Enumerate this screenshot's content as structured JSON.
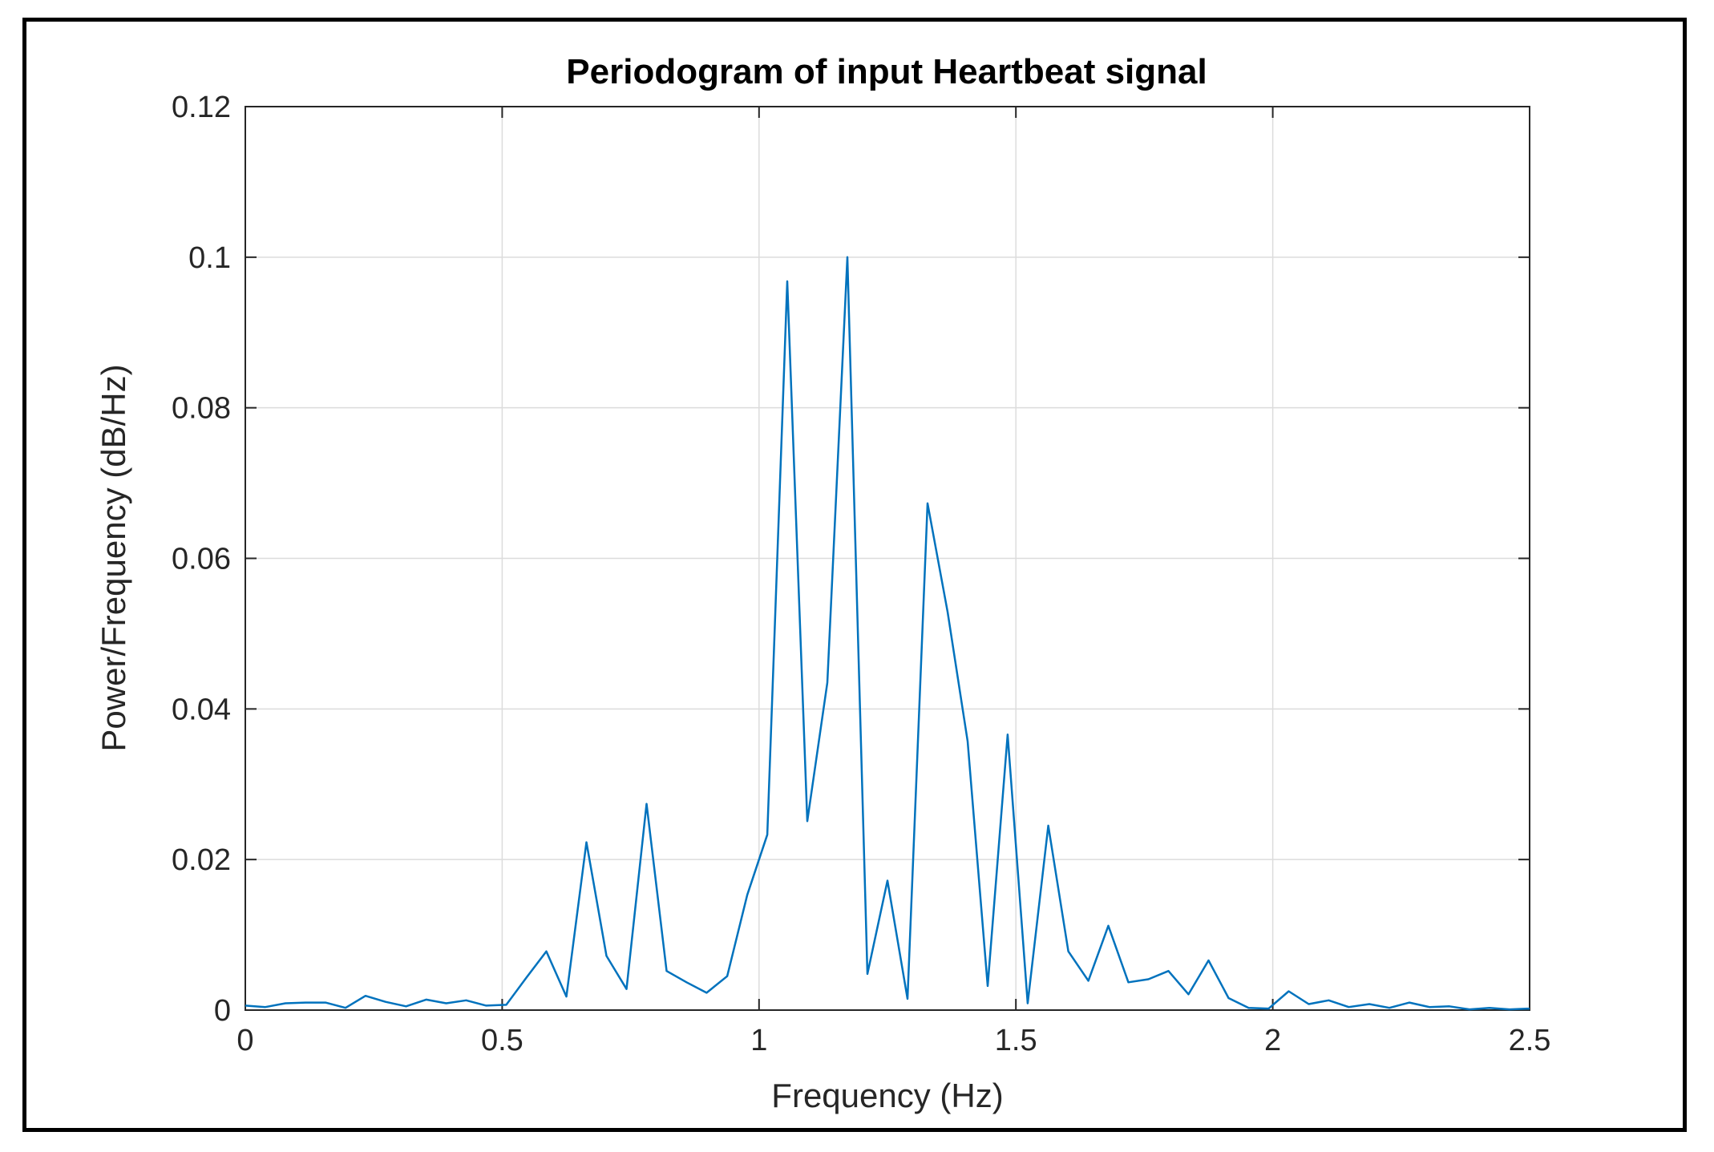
{
  "chart_data": {
    "type": "line",
    "title": "Periodogram of input Heartbeat signal",
    "xlabel": "Frequency (Hz)",
    "ylabel": "Power/Frequency (dB/Hz)",
    "xlim": [
      0,
      2.5
    ],
    "ylim": [
      0,
      0.12
    ],
    "grid": true,
    "legend": "none",
    "line_color": "#0072bd",
    "xticks": [
      0,
      0.5,
      1,
      1.5,
      2,
      2.5
    ],
    "xtick_labels": [
      "0",
      "0.5",
      "1",
      "1.5",
      "2",
      "2.5"
    ],
    "yticks": [
      0,
      0.02,
      0.04,
      0.06,
      0.08,
      0.1,
      0.12
    ],
    "ytick_labels": [
      "0",
      "0.02",
      "0.04",
      "0.06",
      "0.08",
      "0.1",
      "0.12"
    ],
    "series": [
      {
        "name": "Periodogram",
        "x": [
          0,
          0.039,
          0.078,
          0.117,
          0.156,
          0.195,
          0.234,
          0.273,
          0.313,
          0.352,
          0.391,
          0.43,
          0.469,
          0.508,
          0.547,
          0.586,
          0.625,
          0.664,
          0.703,
          0.742,
          0.781,
          0.82,
          0.859,
          0.898,
          0.938,
          0.977,
          1.016,
          1.055,
          1.094,
          1.133,
          1.172,
          1.211,
          1.25,
          1.289,
          1.328,
          1.367,
          1.406,
          1.445,
          1.484,
          1.523,
          1.563,
          1.602,
          1.641,
          1.68,
          1.719,
          1.758,
          1.797,
          1.836,
          1.875,
          1.914,
          1.953,
          1.992,
          2.031,
          2.07,
          2.109,
          2.148,
          2.188,
          2.227,
          2.266,
          2.305,
          2.344,
          2.383,
          2.422,
          2.461,
          2.5
        ],
        "y": [
          0.0006,
          0.0004,
          0.0009,
          0.001,
          0.001,
          0.0003,
          0.0019,
          0.0011,
          0.0005,
          0.0014,
          0.0009,
          0.0013,
          0.0006,
          0.0007,
          0.0043,
          0.0078,
          0.0018,
          0.0223,
          0.0072,
          0.0028,
          0.0274,
          0.0052,
          0.0037,
          0.0023,
          0.0045,
          0.0153,
          0.0233,
          0.0968,
          0.0251,
          0.0435,
          0.1,
          0.0048,
          0.0172,
          0.0015,
          0.0673,
          0.0529,
          0.0357,
          0.0032,
          0.0366,
          0.0009,
          0.0245,
          0.0078,
          0.0039,
          0.0112,
          0.0037,
          0.0041,
          0.0052,
          0.0021,
          0.0066,
          0.0016,
          0.0003,
          0.0002,
          0.0025,
          0.0008,
          0.0013,
          0.0004,
          0.0008,
          0.0003,
          0.001,
          0.0004,
          0.0005,
          0.0001,
          0.0003,
          0.0001,
          0.0002
        ]
      }
    ]
  }
}
